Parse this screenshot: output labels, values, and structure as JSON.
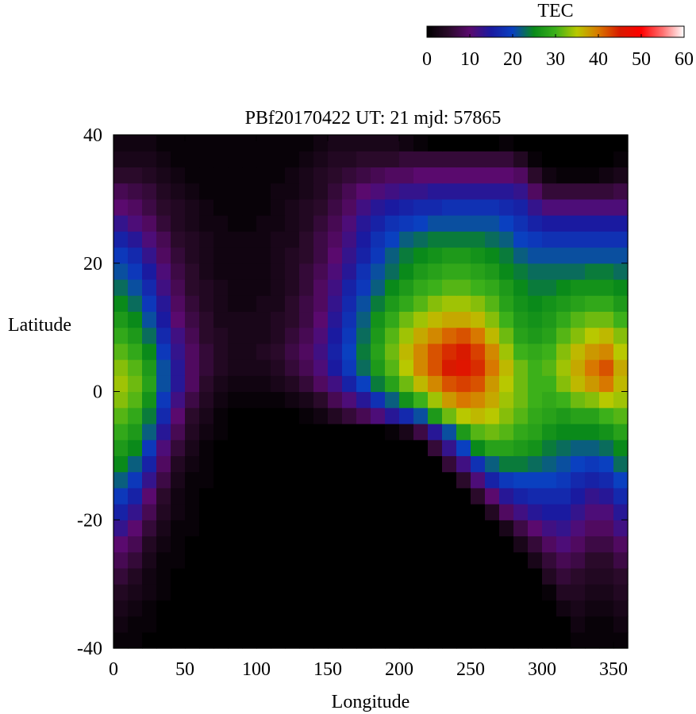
{
  "chart_data": {
    "type": "heatmap",
    "title": "PBf20170422  UT: 21  mjd: 57865",
    "xlabel": "Longitude",
    "ylabel": "Latitude",
    "xlim": [
      0,
      360
    ],
    "ylim": [
      -40,
      40
    ],
    "x_ticks": [
      0,
      50,
      100,
      150,
      200,
      250,
      300,
      350
    ],
    "y_ticks": [
      -40,
      -20,
      0,
      20,
      40
    ],
    "grid": false,
    "colorbar": {
      "label": "TEC",
      "range": [
        0,
        60
      ],
      "ticks": [
        0,
        10,
        20,
        30,
        40,
        50,
        60
      ],
      "position": "top-right",
      "palette": [
        {
          "v": 0,
          "color": "#000000"
        },
        {
          "v": 5,
          "color": "#2a0a2a"
        },
        {
          "v": 10,
          "color": "#5a0a6e"
        },
        {
          "v": 15,
          "color": "#1a1aa0"
        },
        {
          "v": 20,
          "color": "#0a40c0"
        },
        {
          "v": 25,
          "color": "#0a8a1a"
        },
        {
          "v": 30,
          "color": "#3cb01a"
        },
        {
          "v": 35,
          "color": "#b8c800"
        },
        {
          "v": 40,
          "color": "#d87800"
        },
        {
          "v": 45,
          "color": "#d81a00"
        },
        {
          "v": 50,
          "color": "#ff0000"
        },
        {
          "v": 55,
          "color": "#ff7070"
        },
        {
          "v": 60,
          "color": "#ffffff"
        }
      ]
    },
    "grid_spec": {
      "lon_start": 0,
      "lon_step": 10,
      "lon_count": 36,
      "lat_start": -40,
      "lat_step": 2.5,
      "lat_count": 32
    },
    "values": [
      [
        1,
        1,
        0,
        0,
        0,
        0,
        0,
        0,
        0,
        0,
        0,
        0,
        0,
        0,
        0,
        0,
        0,
        0,
        0,
        0,
        0,
        0,
        0,
        0,
        0,
        0,
        0,
        0,
        0,
        0,
        0,
        0,
        1,
        1,
        1,
        1
      ],
      [
        2,
        1,
        1,
        0,
        0,
        0,
        0,
        0,
        0,
        0,
        0,
        0,
        0,
        0,
        0,
        0,
        0,
        0,
        0,
        0,
        0,
        0,
        0,
        0,
        0,
        0,
        0,
        0,
        0,
        0,
        0,
        0,
        2,
        1,
        1,
        2
      ],
      [
        3,
        2,
        1,
        0,
        0,
        0,
        0,
        0,
        0,
        0,
        0,
        0,
        0,
        0,
        0,
        0,
        0,
        0,
        0,
        0,
        0,
        0,
        0,
        0,
        0,
        0,
        0,
        0,
        0,
        0,
        0,
        2,
        3,
        2,
        2,
        3
      ],
      [
        4,
        3,
        2,
        1,
        0,
        0,
        0,
        0,
        0,
        0,
        0,
        0,
        0,
        0,
        0,
        0,
        0,
        0,
        0,
        0,
        0,
        0,
        0,
        0,
        0,
        0,
        0,
        0,
        0,
        0,
        1,
        4,
        4,
        3,
        3,
        4
      ],
      [
        6,
        4,
        2,
        1,
        0,
        0,
        0,
        0,
        0,
        0,
        0,
        0,
        0,
        0,
        0,
        0,
        0,
        0,
        0,
        0,
        0,
        0,
        0,
        0,
        0,
        0,
        0,
        0,
        0,
        0,
        4,
        6,
        5,
        4,
        4,
        5
      ],
      [
        8,
        6,
        3,
        1,
        1,
        0,
        0,
        0,
        0,
        0,
        0,
        0,
        0,
        0,
        0,
        0,
        0,
        0,
        0,
        0,
        0,
        0,
        0,
        0,
        0,
        0,
        0,
        0,
        0,
        3,
        6,
        8,
        7,
        5,
        5,
        7
      ],
      [
        10,
        8,
        4,
        2,
        1,
        0,
        0,
        0,
        0,
        0,
        0,
        0,
        0,
        0,
        0,
        0,
        0,
        0,
        0,
        0,
        0,
        0,
        0,
        0,
        0,
        0,
        0,
        0,
        3,
        6,
        9,
        11,
        9,
        7,
        7,
        9
      ],
      [
        13,
        10,
        6,
        3,
        1,
        1,
        0,
        0,
        0,
        0,
        0,
        0,
        0,
        0,
        0,
        0,
        0,
        0,
        0,
        0,
        0,
        0,
        0,
        0,
        0,
        0,
        0,
        3,
        7,
        10,
        12,
        13,
        11,
        9,
        9,
        12
      ],
      [
        16,
        13,
        8,
        4,
        2,
        1,
        0,
        0,
        0,
        0,
        0,
        0,
        0,
        0,
        0,
        0,
        0,
        0,
        0,
        0,
        0,
        0,
        0,
        0,
        0,
        0,
        4,
        9,
        12,
        14,
        15,
        15,
        13,
        11,
        11,
        14
      ],
      [
        19,
        16,
        10,
        5,
        2,
        1,
        0,
        0,
        0,
        0,
        0,
        0,
        0,
        0,
        0,
        0,
        0,
        0,
        0,
        0,
        0,
        0,
        0,
        0,
        0,
        5,
        10,
        14,
        16,
        17,
        17,
        17,
        15,
        13,
        14,
        17
      ],
      [
        22,
        19,
        13,
        7,
        3,
        1,
        1,
        0,
        0,
        0,
        0,
        0,
        0,
        0,
        0,
        0,
        0,
        0,
        0,
        0,
        0,
        0,
        0,
        0,
        5,
        11,
        16,
        19,
        20,
        20,
        20,
        19,
        17,
        16,
        17,
        20
      ],
      [
        25,
        22,
        16,
        9,
        4,
        2,
        1,
        0,
        0,
        0,
        0,
        0,
        0,
        0,
        0,
        0,
        0,
        0,
        0,
        0,
        0,
        0,
        0,
        6,
        12,
        18,
        22,
        24,
        24,
        23,
        22,
        21,
        20,
        19,
        20,
        23
      ],
      [
        27,
        25,
        19,
        11,
        6,
        3,
        1,
        0,
        0,
        0,
        0,
        0,
        0,
        0,
        0,
        0,
        0,
        0,
        0,
        0,
        0,
        0,
        6,
        13,
        20,
        25,
        28,
        28,
        27,
        26,
        24,
        23,
        22,
        22,
        23,
        25
      ],
      [
        29,
        27,
        22,
        14,
        8,
        4,
        2,
        1,
        0,
        0,
        0,
        0,
        0,
        0,
        0,
        0,
        0,
        0,
        0,
        1,
        3,
        7,
        14,
        21,
        27,
        31,
        32,
        31,
        29,
        28,
        26,
        25,
        25,
        25,
        26,
        28
      ],
      [
        31,
        29,
        24,
        17,
        10,
        5,
        3,
        1,
        0,
        0,
        0,
        0,
        0,
        1,
        2,
        4,
        6,
        8,
        11,
        14,
        17,
        21,
        27,
        32,
        35,
        36,
        35,
        33,
        31,
        29,
        28,
        27,
        28,
        28,
        30,
        31
      ],
      [
        33,
        31,
        26,
        19,
        12,
        7,
        4,
        2,
        1,
        1,
        1,
        1,
        2,
        3,
        5,
        8,
        11,
        14,
        18,
        22,
        26,
        30,
        34,
        38,
        40,
        39,
        37,
        34,
        32,
        30,
        29,
        30,
        32,
        33,
        35,
        34
      ],
      [
        34,
        32,
        28,
        21,
        14,
        9,
        5,
        3,
        2,
        2,
        2,
        3,
        4,
        6,
        9,
        12,
        16,
        20,
        24,
        28,
        32,
        36,
        39,
        42,
        43,
        42,
        38,
        35,
        32,
        30,
        30,
        33,
        36,
        38,
        40,
        36
      ],
      [
        33,
        31,
        27,
        21,
        14,
        9,
        6,
        4,
        3,
        3,
        3,
        4,
        6,
        8,
        11,
        15,
        19,
        23,
        27,
        31,
        35,
        39,
        42,
        45,
        46,
        44,
        40,
        36,
        32,
        30,
        31,
        34,
        37,
        40,
        42,
        37
      ],
      [
        31,
        29,
        25,
        19,
        13,
        9,
        6,
        4,
        3,
        3,
        4,
        5,
        7,
        9,
        12,
        16,
        20,
        24,
        28,
        32,
        36,
        39,
        42,
        44,
        45,
        43,
        39,
        34,
        30,
        29,
        30,
        33,
        36,
        38,
        39,
        35
      ],
      [
        29,
        27,
        23,
        17,
        12,
        8,
        5,
        4,
        3,
        3,
        3,
        4,
        6,
        8,
        11,
        15,
        19,
        23,
        27,
        31,
        34,
        37,
        39,
        41,
        42,
        40,
        36,
        32,
        28,
        27,
        28,
        31,
        33,
        35,
        36,
        33
      ],
      [
        27,
        25,
        21,
        15,
        10,
        7,
        5,
        3,
        3,
        3,
        3,
        4,
        5,
        7,
        10,
        14,
        18,
        22,
        26,
        29,
        32,
        34,
        36,
        37,
        37,
        36,
        33,
        30,
        27,
        26,
        27,
        29,
        31,
        32,
        32,
        30
      ],
      [
        25,
        23,
        19,
        14,
        9,
        6,
        4,
        3,
        2,
        2,
        3,
        3,
        5,
        7,
        9,
        13,
        17,
        21,
        24,
        27,
        29,
        31,
        33,
        34,
        34,
        33,
        31,
        28,
        26,
        25,
        26,
        27,
        28,
        29,
        29,
        27
      ],
      [
        23,
        21,
        17,
        12,
        8,
        5,
        4,
        3,
        2,
        2,
        2,
        3,
        4,
        6,
        9,
        12,
        16,
        19,
        22,
        25,
        27,
        29,
        30,
        31,
        31,
        30,
        29,
        27,
        25,
        24,
        24,
        25,
        26,
        26,
        26,
        25
      ],
      [
        21,
        19,
        15,
        11,
        7,
        5,
        3,
        2,
        2,
        2,
        2,
        3,
        4,
        6,
        8,
        11,
        14,
        18,
        21,
        23,
        25,
        27,
        28,
        29,
        29,
        28,
        27,
        25,
        24,
        23,
        23,
        23,
        23,
        24,
        24,
        23
      ],
      [
        19,
        17,
        13,
        9,
        6,
        4,
        3,
        2,
        2,
        2,
        2,
        3,
        4,
        5,
        7,
        10,
        13,
        16,
        19,
        22,
        24,
        25,
        26,
        27,
        27,
        26,
        25,
        24,
        22,
        21,
        21,
        21,
        21,
        21,
        21,
        21
      ],
      [
        16,
        14,
        11,
        8,
        5,
        4,
        3,
        2,
        2,
        2,
        2,
        3,
        3,
        5,
        7,
        9,
        12,
        15,
        18,
        20,
        22,
        23,
        24,
        24,
        24,
        24,
        23,
        22,
        20,
        19,
        18,
        18,
        18,
        18,
        18,
        18
      ],
      [
        13,
        11,
        9,
        6,
        4,
        3,
        2,
        2,
        1,
        1,
        2,
        2,
        3,
        4,
        6,
        8,
        11,
        14,
        16,
        18,
        19,
        20,
        21,
        21,
        21,
        21,
        21,
        20,
        18,
        16,
        15,
        15,
        15,
        15,
        15,
        15
      ],
      [
        10,
        9,
        7,
        5,
        4,
        3,
        2,
        1,
        1,
        1,
        1,
        2,
        3,
        4,
        5,
        7,
        9,
        12,
        14,
        15,
        16,
        17,
        17,
        18,
        18,
        18,
        18,
        17,
        16,
        13,
        11,
        11,
        11,
        11,
        11,
        11
      ],
      [
        8,
        7,
        6,
        4,
        3,
        2,
        1,
        1,
        1,
        1,
        1,
        2,
        2,
        3,
        4,
        6,
        8,
        10,
        11,
        12,
        13,
        13,
        14,
        14,
        14,
        14,
        14,
        14,
        13,
        9,
        6,
        6,
        6,
        6,
        6,
        7
      ],
      [
        5,
        5,
        4,
        3,
        2,
        1,
        1,
        1,
        1,
        1,
        1,
        1,
        2,
        3,
        4,
        5,
        6,
        7,
        8,
        9,
        9,
        10,
        10,
        10,
        10,
        10,
        10,
        10,
        9,
        5,
        2,
        1,
        1,
        1,
        2,
        3
      ],
      [
        3,
        3,
        3,
        2,
        1,
        1,
        1,
        1,
        1,
        1,
        1,
        1,
        1,
        2,
        3,
        4,
        4,
        5,
        5,
        5,
        6,
        6,
        6,
        6,
        6,
        6,
        6,
        6,
        4,
        1,
        0,
        0,
        0,
        0,
        0,
        1
      ],
      [
        2,
        2,
        2,
        1,
        1,
        1,
        1,
        1,
        1,
        1,
        1,
        1,
        1,
        1,
        2,
        3,
        3,
        3,
        3,
        3,
        2,
        1,
        0,
        0,
        0,
        0,
        0,
        1,
        0,
        0,
        0,
        0,
        0,
        0,
        0,
        0
      ]
    ]
  }
}
